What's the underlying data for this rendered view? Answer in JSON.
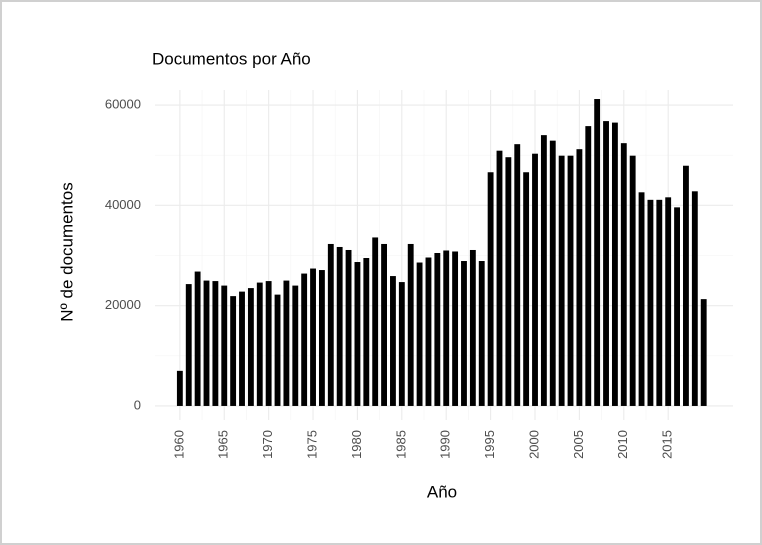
{
  "chart_data": {
    "type": "bar",
    "title": "Documentos por Año",
    "x_label": "Año",
    "y_label": "Nº de documentos",
    "x": [
      1960,
      1961,
      1962,
      1963,
      1964,
      1965,
      1966,
      1967,
      1968,
      1969,
      1970,
      1971,
      1972,
      1973,
      1974,
      1975,
      1976,
      1977,
      1978,
      1979,
      1980,
      1981,
      1982,
      1983,
      1984,
      1985,
      1986,
      1987,
      1988,
      1989,
      1990,
      1991,
      1992,
      1993,
      1994,
      1995,
      1996,
      1997,
      1998,
      1999,
      2000,
      2001,
      2002,
      2003,
      2004,
      2005,
      2006,
      2007,
      2008,
      2009,
      2010,
      2011,
      2012,
      2013,
      2014,
      2015,
      2016,
      2017,
      2018,
      2019
    ],
    "values": [
      7000,
      24300,
      26800,
      25000,
      24900,
      24000,
      21900,
      22800,
      23500,
      24600,
      24900,
      22200,
      25000,
      24000,
      26400,
      27400,
      27100,
      32300,
      31700,
      31100,
      28700,
      29500,
      33600,
      32300,
      25900,
      24700,
      32300,
      28600,
      29600,
      30500,
      31000,
      30800,
      28900,
      31100,
      28900,
      46600,
      50900,
      49600,
      52200,
      46600,
      50300,
      54000,
      52900,
      49900,
      49900,
      51200,
      55800,
      61200,
      56800,
      56500,
      52400,
      49900,
      42600,
      41100,
      41100,
      41600,
      39600,
      47900,
      42800,
      21300
    ],
    "color": "#000000",
    "xlim": [
      1957.2,
      2022.3
    ],
    "xticks": [
      1960,
      1965,
      1970,
      1975,
      1980,
      1985,
      1990,
      1995,
      2000,
      2005,
      2010,
      2015
    ],
    "ylim": [
      -2800,
      63000
    ],
    "yticks": [
      0,
      20000,
      40000,
      60000
    ],
    "grid": true
  }
}
